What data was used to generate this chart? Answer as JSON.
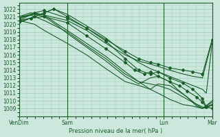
{
  "background_color": "#cce8dd",
  "grid_color": "#99ccbb",
  "line_color": "#1a5c28",
  "xlabel_text": "Pression niveau de la mer( hPa )",
  "x_tick_labels": [
    "VenDim",
    "Sam",
    "Lun",
    "Mar"
  ],
  "x_tick_positions": [
    0,
    0.25,
    0.75,
    1.0
  ],
  "ylim": [
    1008.0,
    1022.8
  ],
  "y_ticks": [
    1009,
    1010,
    1011,
    1012,
    1013,
    1014,
    1015,
    1016,
    1017,
    1018,
    1019,
    1020,
    1021,
    1022
  ],
  "series": [
    {
      "points": [
        [
          0,
          1020.5
        ],
        [
          0.08,
          1021.5
        ],
        [
          0.13,
          1021.2
        ],
        [
          0.2,
          1020.0
        ],
        [
          0.25,
          1019.2
        ],
        [
          0.35,
          1017.5
        ],
        [
          0.45,
          1015.8
        ],
        [
          0.55,
          1013.8
        ],
        [
          0.62,
          1012.5
        ],
        [
          0.68,
          1011.5
        ],
        [
          0.72,
          1011.0
        ],
        [
          0.78,
          1010.2
        ],
        [
          0.85,
          1009.5
        ],
        [
          0.9,
          1009.3
        ],
        [
          0.95,
          1009.0
        ],
        [
          1.0,
          1009.5
        ]
      ],
      "marker": false
    },
    {
      "points": [
        [
          0,
          1020.8
        ],
        [
          0.08,
          1021.3
        ],
        [
          0.13,
          1021.0
        ],
        [
          0.2,
          1019.8
        ],
        [
          0.25,
          1018.8
        ],
        [
          0.35,
          1017.0
        ],
        [
          0.45,
          1015.2
        ],
        [
          0.55,
          1013.2
        ],
        [
          0.62,
          1012.2
        ],
        [
          0.68,
          1013.0
        ],
        [
          0.72,
          1013.2
        ],
        [
          0.78,
          1012.5
        ],
        [
          0.82,
          1011.5
        ],
        [
          0.87,
          1010.5
        ],
        [
          0.92,
          1009.3
        ],
        [
          0.95,
          1009.0
        ],
        [
          1.0,
          1009.8
        ]
      ],
      "marker": false
    },
    {
      "points": [
        [
          0,
          1020.3
        ],
        [
          0.08,
          1021.0
        ],
        [
          0.13,
          1021.5
        ],
        [
          0.18,
          1022.0
        ],
        [
          0.25,
          1021.0
        ],
        [
          0.35,
          1019.5
        ],
        [
          0.45,
          1017.8
        ],
        [
          0.55,
          1015.5
        ],
        [
          0.62,
          1014.0
        ],
        [
          0.68,
          1013.5
        ],
        [
          0.72,
          1013.8
        ],
        [
          0.78,
          1013.0
        ],
        [
          0.85,
          1012.3
        ],
        [
          0.9,
          1011.5
        ],
        [
          0.95,
          1010.3
        ],
        [
          0.97,
          1009.2
        ],
        [
          1.0,
          1009.5
        ]
      ],
      "marker": true
    },
    {
      "points": [
        [
          0,
          1021.0
        ],
        [
          0.06,
          1021.2
        ],
        [
          0.13,
          1020.5
        ],
        [
          0.25,
          1019.0
        ],
        [
          0.35,
          1017.2
        ],
        [
          0.45,
          1015.5
        ],
        [
          0.55,
          1013.5
        ],
        [
          0.62,
          1012.5
        ],
        [
          0.68,
          1012.2
        ],
        [
          0.72,
          1012.0
        ],
        [
          0.78,
          1011.5
        ],
        [
          0.85,
          1010.5
        ],
        [
          0.9,
          1009.8
        ],
        [
          0.95,
          1009.2
        ],
        [
          0.97,
          1009.0
        ],
        [
          1.0,
          1009.5
        ]
      ],
      "marker": false
    },
    {
      "points": [
        [
          0,
          1020.5
        ],
        [
          0.08,
          1020.0
        ],
        [
          0.13,
          1019.2
        ],
        [
          0.25,
          1017.5
        ],
        [
          0.35,
          1016.0
        ],
        [
          0.45,
          1014.2
        ],
        [
          0.55,
          1012.5
        ],
        [
          0.62,
          1012.0
        ],
        [
          0.68,
          1011.5
        ],
        [
          0.72,
          1012.2
        ],
        [
          0.78,
          1012.0
        ],
        [
          0.83,
          1011.2
        ],
        [
          0.87,
          1010.5
        ],
        [
          0.92,
          1009.5
        ],
        [
          0.95,
          1009.0
        ],
        [
          1.0,
          1010.0
        ]
      ],
      "marker": false
    },
    {
      "points": [
        [
          0,
          1020.5
        ],
        [
          0.06,
          1020.8
        ],
        [
          0.13,
          1021.0
        ],
        [
          0.25,
          1020.2
        ],
        [
          0.35,
          1018.5
        ],
        [
          0.45,
          1016.8
        ],
        [
          0.55,
          1015.0
        ],
        [
          0.6,
          1014.0
        ],
        [
          0.65,
          1013.5
        ],
        [
          0.68,
          1013.8
        ],
        [
          0.72,
          1013.2
        ],
        [
          0.78,
          1012.5
        ],
        [
          0.83,
          1012.0
        ],
        [
          0.87,
          1011.3
        ],
        [
          0.92,
          1010.5
        ],
        [
          0.95,
          1009.8
        ],
        [
          0.97,
          1009.2
        ],
        [
          1.0,
          1009.0
        ]
      ],
      "marker": true
    },
    {
      "points": [
        [
          0,
          1020.2
        ],
        [
          0.06,
          1020.8
        ],
        [
          0.13,
          1021.5
        ],
        [
          0.18,
          1022.0
        ],
        [
          0.25,
          1021.3
        ],
        [
          0.35,
          1019.8
        ],
        [
          0.45,
          1018.2
        ],
        [
          0.55,
          1016.2
        ],
        [
          0.62,
          1015.0
        ],
        [
          0.68,
          1014.2
        ],
        [
          0.72,
          1013.8
        ],
        [
          0.78,
          1013.2
        ],
        [
          0.85,
          1012.5
        ],
        [
          0.9,
          1012.0
        ],
        [
          0.95,
          1011.5
        ],
        [
          0.97,
          1011.0
        ],
        [
          1.0,
          1017.5
        ]
      ],
      "marker": false
    },
    {
      "points": [
        [
          0,
          1021.0
        ],
        [
          0.06,
          1021.5
        ],
        [
          0.13,
          1021.2
        ],
        [
          0.25,
          1020.5
        ],
        [
          0.35,
          1019.2
        ],
        [
          0.45,
          1017.5
        ],
        [
          0.55,
          1016.0
        ],
        [
          0.62,
          1015.2
        ],
        [
          0.68,
          1014.8
        ],
        [
          0.72,
          1014.5
        ],
        [
          0.78,
          1014.0
        ],
        [
          0.85,
          1013.5
        ],
        [
          0.9,
          1013.2
        ],
        [
          0.95,
          1013.0
        ],
        [
          1.0,
          1017.8
        ]
      ],
      "marker": false
    },
    {
      "points": [
        [
          0,
          1020.8
        ],
        [
          0.08,
          1021.5
        ],
        [
          0.13,
          1021.8
        ],
        [
          0.25,
          1020.8
        ],
        [
          0.35,
          1019.5
        ],
        [
          0.45,
          1018.0
        ],
        [
          0.55,
          1016.5
        ],
        [
          0.62,
          1015.5
        ],
        [
          0.68,
          1015.0
        ],
        [
          0.72,
          1014.8
        ],
        [
          0.78,
          1014.3
        ],
        [
          0.85,
          1014.0
        ],
        [
          0.9,
          1013.8
        ],
        [
          0.95,
          1013.5
        ],
        [
          1.0,
          1018.0
        ]
      ],
      "marker": true
    }
  ]
}
